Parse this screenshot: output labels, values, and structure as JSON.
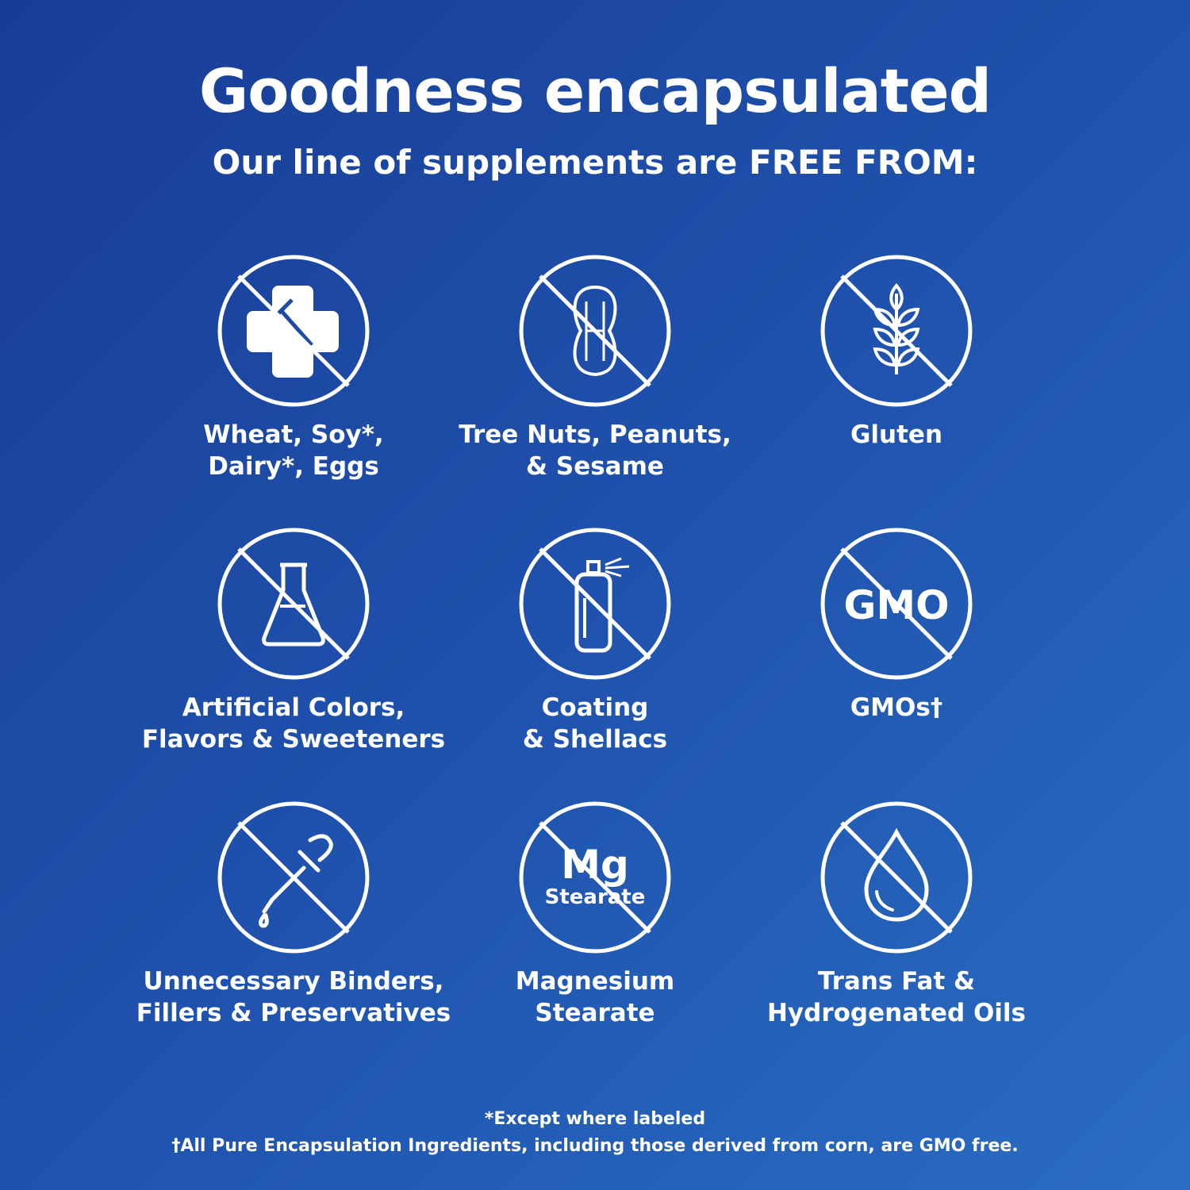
{
  "header": {
    "title": "Goodness encapsulated",
    "subtitle": "Our line of supplements are FREE FROM:"
  },
  "items": [
    {
      "icon": "no-allergens-icon",
      "lines": [
        "Wheat, Soy*,",
        "Dairy*, Eggs"
      ]
    },
    {
      "icon": "no-peanut-icon",
      "lines": [
        "Tree Nuts, Peanuts,",
        "& Sesame"
      ]
    },
    {
      "icon": "no-wheat-icon",
      "lines": [
        "Gluten"
      ]
    },
    {
      "icon": "no-flask-icon",
      "lines": [
        "Artificial Colors,",
        "Flavors & Sweeteners"
      ]
    },
    {
      "icon": "no-spray-icon",
      "lines": [
        "Coating",
        "& Shellacs"
      ]
    },
    {
      "icon": "no-gmo-icon",
      "icon_text": "GMO",
      "lines": [
        "GMOs†"
      ]
    },
    {
      "icon": "no-dropper-icon",
      "lines": [
        "Unnecessary Binders,",
        "Fillers & Preservatives"
      ]
    },
    {
      "icon": "no-mg-stearate-icon",
      "icon_text": "Mg",
      "icon_subtext": "Stearate",
      "lines": [
        "Magnesium",
        "Stearate"
      ]
    },
    {
      "icon": "no-oil-drop-icon",
      "lines": [
        "Trans Fat &",
        "Hydrogenated Oils"
      ]
    }
  ],
  "footnotes": [
    "*Except where labeled",
    "†All Pure Encapsulation Ingredients, including those derived from corn, are GMO free."
  ],
  "colors": {
    "background_start": "#183c96",
    "background_end": "#2a6dc2",
    "foreground": "#ffffff"
  }
}
